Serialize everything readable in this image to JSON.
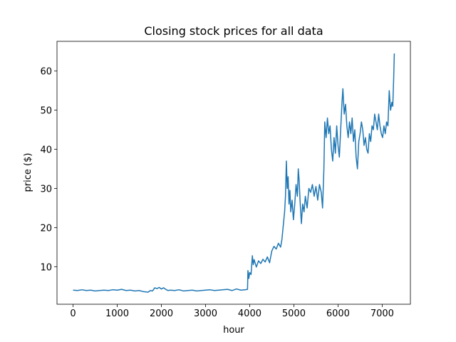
{
  "chart_data": {
    "type": "line",
    "title": "Closing stock prices for all data",
    "x_label": "hour",
    "y_label": "price ($)",
    "color": "#1f77b4",
    "x": [
      0,
      100,
      200,
      300,
      400,
      500,
      600,
      700,
      800,
      900,
      1000,
      1100,
      1200,
      1300,
      1400,
      1500,
      1600,
      1700,
      1750,
      1800,
      1850,
      1900,
      1950,
      2000,
      2050,
      2100,
      2150,
      2200,
      2300,
      2400,
      2500,
      2600,
      2700,
      2800,
      2900,
      3000,
      3100,
      3200,
      3300,
      3400,
      3500,
      3600,
      3700,
      3800,
      3900,
      3950,
      3960,
      3980,
      4000,
      4030,
      4060,
      4080,
      4100,
      4150,
      4200,
      4250,
      4300,
      4350,
      4400,
      4450,
      4500,
      4550,
      4600,
      4650,
      4700,
      4730,
      4760,
      4790,
      4810,
      4830,
      4850,
      4870,
      4890,
      4910,
      4930,
      4960,
      4990,
      5020,
      5050,
      5080,
      5100,
      5120,
      5140,
      5170,
      5200,
      5230,
      5260,
      5300,
      5340,
      5380,
      5420,
      5460,
      5500,
      5540,
      5580,
      5620,
      5650,
      5680,
      5700,
      5730,
      5760,
      5790,
      5820,
      5850,
      5880,
      5910,
      5940,
      5970,
      6000,
      6030,
      6060,
      6090,
      6110,
      6140,
      6170,
      6200,
      6230,
      6260,
      6290,
      6320,
      6350,
      6380,
      6410,
      6440,
      6470,
      6500,
      6530,
      6560,
      6590,
      6620,
      6650,
      6680,
      6710,
      6740,
      6770,
      6800,
      6830,
      6860,
      6890,
      6920,
      6950,
      6980,
      7010,
      7040,
      7070,
      7100,
      7130,
      7160,
      7190,
      7220,
      7240,
      7260,
      7275
    ],
    "values": [
      4.0,
      3.9,
      4.1,
      3.9,
      4.0,
      3.8,
      3.9,
      4.0,
      3.9,
      4.1,
      4.0,
      4.2,
      3.9,
      4.0,
      3.8,
      3.9,
      3.6,
      3.5,
      3.9,
      3.8,
      4.6,
      4.4,
      4.7,
      4.3,
      4.6,
      4.2,
      3.9,
      4.0,
      3.9,
      4.1,
      3.8,
      3.9,
      4.0,
      3.8,
      3.9,
      4.0,
      4.1,
      3.9,
      4.0,
      4.1,
      4.2,
      3.9,
      4.3,
      4.0,
      4.1,
      4.2,
      9.0,
      7.0,
      8.5,
      8.0,
      12.8,
      10.5,
      11.8,
      9.9,
      11.5,
      10.8,
      11.9,
      11.2,
      12.5,
      11.0,
      14.0,
      15.2,
      14.5,
      16.0,
      15.0,
      17.0,
      20.5,
      24.0,
      28.0,
      37.0,
      30.0,
      33.0,
      26.0,
      29.5,
      24.0,
      27.0,
      22.0,
      26.0,
      31.0,
      28.0,
      35.0,
      32.0,
      27.0,
      21.0,
      26.0,
      24.0,
      28.0,
      25.0,
      30.0,
      29.0,
      31.0,
      28.0,
      30.5,
      27.0,
      31.0,
      29.0,
      25.0,
      35.0,
      47.0,
      43.0,
      48.0,
      44.0,
      46.0,
      40.0,
      37.0,
      43.0,
      39.0,
      46.0,
      41.0,
      38.0,
      45.0,
      52.0,
      55.5,
      49.0,
      51.5,
      46.0,
      43.0,
      47.0,
      44.0,
      48.0,
      42.0,
      45.0,
      38.0,
      35.0,
      42.0,
      44.0,
      47.0,
      45.0,
      41.0,
      43.0,
      40.0,
      39.0,
      44.0,
      42.0,
      46.0,
      45.0,
      49.0,
      47.0,
      45.0,
      49.0,
      46.0,
      44.0,
      43.0,
      46.0,
      44.0,
      47.0,
      46.0,
      55.0,
      50.0,
      52.0,
      51.0,
      58.0,
      64.5
    ],
    "xlim": [
      -364,
      7639
    ],
    "ylim": [
      0.4,
      67.6
    ],
    "xticks": [
      0,
      1000,
      2000,
      3000,
      4000,
      5000,
      6000,
      7000
    ],
    "yticks": [
      10,
      20,
      30,
      40,
      50,
      60
    ]
  }
}
